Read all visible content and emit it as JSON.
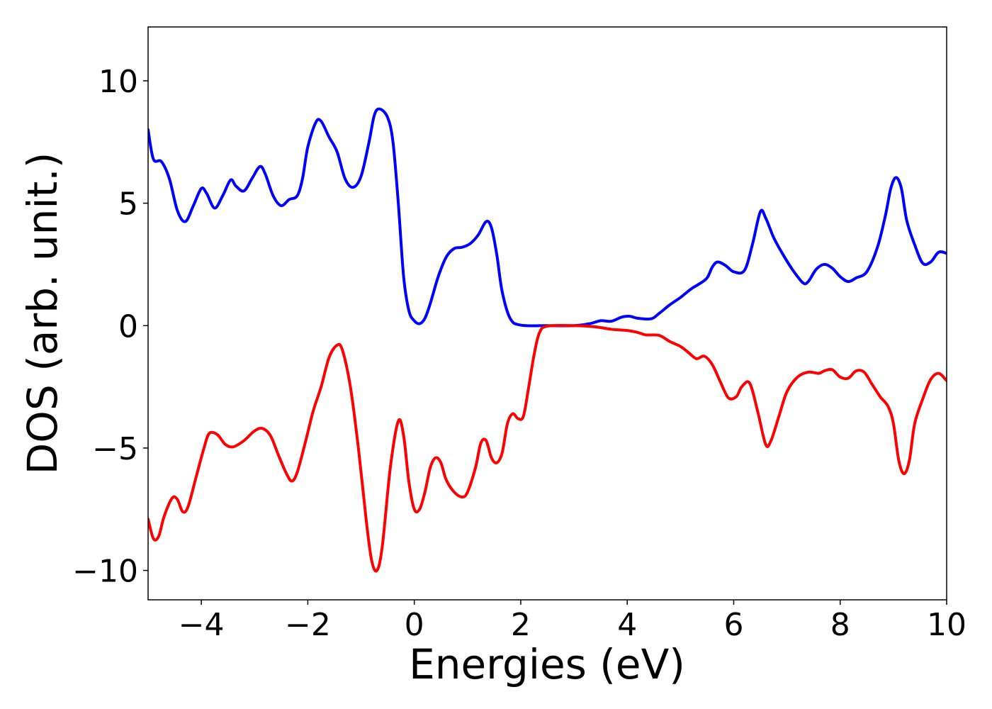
{
  "chart_data": {
    "type": "line",
    "title": "",
    "xlabel": "Energies (eV)",
    "ylabel": "DOS (arb. unit.)",
    "xlim": [
      -5,
      10
    ],
    "ylim": [
      -11.2,
      12.2
    ],
    "xticks": [
      -4,
      -2,
      0,
      2,
      4,
      6,
      8,
      10
    ],
    "xtick_labels": [
      "−4",
      "−2",
      "0",
      "2",
      "4",
      "6",
      "8",
      "10"
    ],
    "yticks": [
      -10,
      -5,
      0,
      5,
      10
    ],
    "ytick_labels": [
      "−10",
      "−5",
      "0",
      "5",
      "10"
    ],
    "grid": false,
    "legend": "none",
    "series": [
      {
        "color": "#0000ff",
        "points": [
          [
            -5.0,
            8.0
          ],
          [
            -4.9,
            6.8
          ],
          [
            -4.75,
            6.7
          ],
          [
            -4.6,
            6.0
          ],
          [
            -4.45,
            4.7
          ],
          [
            -4.3,
            4.25
          ],
          [
            -4.15,
            4.9
          ],
          [
            -4.0,
            5.6
          ],
          [
            -3.9,
            5.4
          ],
          [
            -3.75,
            4.8
          ],
          [
            -3.6,
            5.3
          ],
          [
            -3.45,
            5.95
          ],
          [
            -3.35,
            5.7
          ],
          [
            -3.2,
            5.5
          ],
          [
            -3.05,
            6.0
          ],
          [
            -2.9,
            6.5
          ],
          [
            -2.8,
            6.2
          ],
          [
            -2.65,
            5.3
          ],
          [
            -2.5,
            4.9
          ],
          [
            -2.35,
            5.15
          ],
          [
            -2.2,
            5.3
          ],
          [
            -2.1,
            6.0
          ],
          [
            -2.0,
            7.3
          ],
          [
            -1.85,
            8.3
          ],
          [
            -1.75,
            8.35
          ],
          [
            -1.6,
            7.7
          ],
          [
            -1.45,
            7.1
          ],
          [
            -1.3,
            6.0
          ],
          [
            -1.15,
            5.65
          ],
          [
            -1.0,
            6.1
          ],
          [
            -0.85,
            7.5
          ],
          [
            -0.75,
            8.6
          ],
          [
            -0.65,
            8.85
          ],
          [
            -0.5,
            8.5
          ],
          [
            -0.4,
            7.5
          ],
          [
            -0.3,
            5.0
          ],
          [
            -0.2,
            2.0
          ],
          [
            -0.1,
            0.6
          ],
          [
            0.0,
            0.2
          ],
          [
            0.1,
            0.08
          ],
          [
            0.2,
            0.3
          ],
          [
            0.3,
            0.9
          ],
          [
            0.45,
            2.0
          ],
          [
            0.6,
            2.8
          ],
          [
            0.75,
            3.15
          ],
          [
            0.9,
            3.2
          ],
          [
            1.05,
            3.35
          ],
          [
            1.2,
            3.7
          ],
          [
            1.35,
            4.25
          ],
          [
            1.45,
            4.0
          ],
          [
            1.55,
            2.9
          ],
          [
            1.65,
            1.4
          ],
          [
            1.8,
            0.3
          ],
          [
            2.0,
            0.02
          ],
          [
            2.5,
            0.0
          ],
          [
            3.0,
            0.0
          ],
          [
            3.3,
            0.08
          ],
          [
            3.5,
            0.2
          ],
          [
            3.7,
            0.18
          ],
          [
            3.9,
            0.35
          ],
          [
            4.05,
            0.38
          ],
          [
            4.2,
            0.3
          ],
          [
            4.45,
            0.28
          ],
          [
            4.6,
            0.5
          ],
          [
            4.8,
            0.85
          ],
          [
            5.0,
            1.15
          ],
          [
            5.2,
            1.5
          ],
          [
            5.35,
            1.7
          ],
          [
            5.5,
            1.95
          ],
          [
            5.6,
            2.4
          ],
          [
            5.7,
            2.6
          ],
          [
            5.85,
            2.45
          ],
          [
            6.0,
            2.2
          ],
          [
            6.2,
            2.25
          ],
          [
            6.35,
            3.3
          ],
          [
            6.5,
            4.65
          ],
          [
            6.6,
            4.4
          ],
          [
            6.75,
            3.6
          ],
          [
            6.9,
            3.0
          ],
          [
            7.1,
            2.3
          ],
          [
            7.3,
            1.75
          ],
          [
            7.4,
            1.8
          ],
          [
            7.55,
            2.3
          ],
          [
            7.7,
            2.5
          ],
          [
            7.85,
            2.35
          ],
          [
            8.0,
            2.0
          ],
          [
            8.15,
            1.8
          ],
          [
            8.3,
            1.95
          ],
          [
            8.5,
            2.2
          ],
          [
            8.7,
            3.2
          ],
          [
            8.85,
            4.5
          ],
          [
            8.95,
            5.6
          ],
          [
            9.05,
            6.05
          ],
          [
            9.15,
            5.6
          ],
          [
            9.25,
            4.3
          ],
          [
            9.4,
            3.3
          ],
          [
            9.55,
            2.55
          ],
          [
            9.7,
            2.6
          ],
          [
            9.85,
            3.0
          ],
          [
            10.0,
            2.95
          ]
        ]
      },
      {
        "color": "#ff0000",
        "points": [
          [
            -5.0,
            -7.9
          ],
          [
            -4.9,
            -8.7
          ],
          [
            -4.8,
            -8.6
          ],
          [
            -4.7,
            -7.8
          ],
          [
            -4.55,
            -7.05
          ],
          [
            -4.45,
            -7.1
          ],
          [
            -4.35,
            -7.6
          ],
          [
            -4.25,
            -7.4
          ],
          [
            -4.1,
            -6.2
          ],
          [
            -3.95,
            -5.0
          ],
          [
            -3.85,
            -4.4
          ],
          [
            -3.7,
            -4.45
          ],
          [
            -3.55,
            -4.85
          ],
          [
            -3.4,
            -4.95
          ],
          [
            -3.2,
            -4.7
          ],
          [
            -3.0,
            -4.3
          ],
          [
            -2.85,
            -4.2
          ],
          [
            -2.7,
            -4.5
          ],
          [
            -2.55,
            -5.3
          ],
          [
            -2.4,
            -6.05
          ],
          [
            -2.3,
            -6.35
          ],
          [
            -2.2,
            -6.0
          ],
          [
            -2.05,
            -4.8
          ],
          [
            -1.9,
            -3.5
          ],
          [
            -1.75,
            -2.5
          ],
          [
            -1.6,
            -1.3
          ],
          [
            -1.45,
            -0.8
          ],
          [
            -1.35,
            -1.0
          ],
          [
            -1.2,
            -2.5
          ],
          [
            -1.05,
            -5.0
          ],
          [
            -0.9,
            -8.0
          ],
          [
            -0.8,
            -9.6
          ],
          [
            -0.7,
            -10.0
          ],
          [
            -0.6,
            -9.0
          ],
          [
            -0.45,
            -5.8
          ],
          [
            -0.3,
            -3.9
          ],
          [
            -0.2,
            -4.5
          ],
          [
            -0.1,
            -6.4
          ],
          [
            0.0,
            -7.5
          ],
          [
            0.1,
            -7.5
          ],
          [
            0.2,
            -6.8
          ],
          [
            0.3,
            -5.8
          ],
          [
            0.4,
            -5.4
          ],
          [
            0.5,
            -5.6
          ],
          [
            0.6,
            -6.3
          ],
          [
            0.75,
            -6.8
          ],
          [
            0.9,
            -7.0
          ],
          [
            1.0,
            -6.8
          ],
          [
            1.15,
            -5.8
          ],
          [
            1.25,
            -4.8
          ],
          [
            1.35,
            -4.7
          ],
          [
            1.45,
            -5.4
          ],
          [
            1.55,
            -5.6
          ],
          [
            1.65,
            -5.2
          ],
          [
            1.75,
            -4.0
          ],
          [
            1.85,
            -3.6
          ],
          [
            1.95,
            -3.8
          ],
          [
            2.05,
            -3.7
          ],
          [
            2.15,
            -2.5
          ],
          [
            2.25,
            -1.2
          ],
          [
            2.35,
            -0.3
          ],
          [
            2.5,
            -0.02
          ],
          [
            3.0,
            0.0
          ],
          [
            3.4,
            -0.05
          ],
          [
            3.7,
            -0.15
          ],
          [
            4.0,
            -0.2
          ],
          [
            4.2,
            -0.28
          ],
          [
            4.35,
            -0.38
          ],
          [
            4.6,
            -0.4
          ],
          [
            4.8,
            -0.65
          ],
          [
            5.0,
            -0.85
          ],
          [
            5.15,
            -1.1
          ],
          [
            5.3,
            -1.35
          ],
          [
            5.45,
            -1.25
          ],
          [
            5.6,
            -1.6
          ],
          [
            5.75,
            -2.3
          ],
          [
            5.9,
            -2.95
          ],
          [
            6.05,
            -2.9
          ],
          [
            6.15,
            -2.5
          ],
          [
            6.3,
            -2.35
          ],
          [
            6.45,
            -3.5
          ],
          [
            6.6,
            -4.85
          ],
          [
            6.7,
            -4.7
          ],
          [
            6.85,
            -3.7
          ],
          [
            7.0,
            -2.7
          ],
          [
            7.2,
            -2.1
          ],
          [
            7.4,
            -1.9
          ],
          [
            7.6,
            -1.95
          ],
          [
            7.7,
            -1.85
          ],
          [
            7.85,
            -1.8
          ],
          [
            8.0,
            -2.1
          ],
          [
            8.15,
            -2.15
          ],
          [
            8.3,
            -1.85
          ],
          [
            8.45,
            -1.9
          ],
          [
            8.6,
            -2.4
          ],
          [
            8.75,
            -2.9
          ],
          [
            8.9,
            -3.3
          ],
          [
            9.0,
            -4.0
          ],
          [
            9.1,
            -5.5
          ],
          [
            9.2,
            -6.05
          ],
          [
            9.3,
            -5.5
          ],
          [
            9.4,
            -4.0
          ],
          [
            9.55,
            -3.0
          ],
          [
            9.7,
            -2.2
          ],
          [
            9.85,
            -1.95
          ],
          [
            10.0,
            -2.25
          ]
        ]
      }
    ]
  }
}
